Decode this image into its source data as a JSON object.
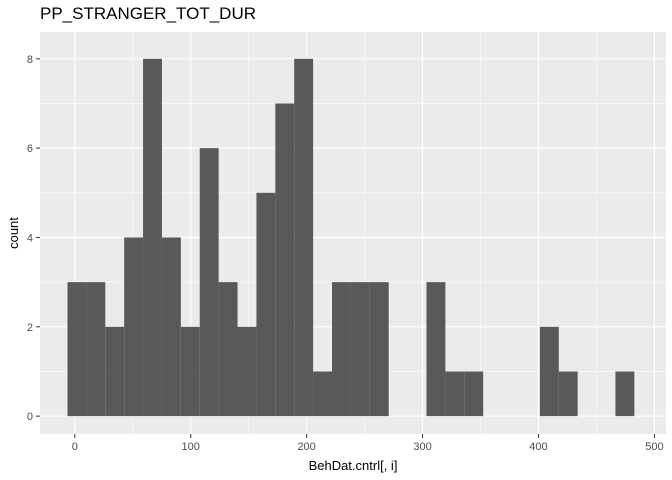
{
  "chart_data": {
    "type": "bar",
    "title": "PP_STRANGER_TOT_DUR",
    "xlabel": "BehDat.cntrl[, i]",
    "ylabel": "count",
    "xlim": [
      -30,
      510
    ],
    "ylim": [
      -0.4,
      8.6
    ],
    "grid": true,
    "bin_width": 16.3,
    "bins": [
      {
        "x": -6.3,
        "count": 3
      },
      {
        "x": 10.0,
        "count": 3
      },
      {
        "x": 26.3,
        "count": 2
      },
      {
        "x": 42.6,
        "count": 4
      },
      {
        "x": 58.9,
        "count": 8
      },
      {
        "x": 75.2,
        "count": 4
      },
      {
        "x": 91.5,
        "count": 2
      },
      {
        "x": 107.8,
        "count": 6
      },
      {
        "x": 124.1,
        "count": 3
      },
      {
        "x": 140.4,
        "count": 2
      },
      {
        "x": 156.7,
        "count": 5
      },
      {
        "x": 173.0,
        "count": 7
      },
      {
        "x": 189.3,
        "count": 8
      },
      {
        "x": 205.6,
        "count": 1
      },
      {
        "x": 221.9,
        "count": 3
      },
      {
        "x": 238.2,
        "count": 3
      },
      {
        "x": 254.5,
        "count": 3
      },
      {
        "x": 270.8,
        "count": 0
      },
      {
        "x": 287.1,
        "count": 0
      },
      {
        "x": 303.4,
        "count": 3
      },
      {
        "x": 319.7,
        "count": 1
      },
      {
        "x": 336.0,
        "count": 1
      },
      {
        "x": 352.3,
        "count": 0
      },
      {
        "x": 368.6,
        "count": 0
      },
      {
        "x": 384.9,
        "count": 0
      },
      {
        "x": 401.2,
        "count": 2
      },
      {
        "x": 417.5,
        "count": 1
      },
      {
        "x": 433.8,
        "count": 0
      },
      {
        "x": 450.1,
        "count": 0
      },
      {
        "x": 466.4,
        "count": 1
      }
    ],
    "x_ticks": [
      0,
      100,
      200,
      300,
      400,
      500
    ],
    "x_tick_labels": [
      "0",
      "100",
      "200",
      "300",
      "400",
      "500"
    ],
    "y_ticks": [
      0,
      2,
      4,
      6,
      8
    ],
    "y_tick_labels": [
      "0",
      "2",
      "4",
      "6",
      "8"
    ],
    "colors": {
      "panel": "#ebebeb",
      "grid_major": "#ffffff",
      "bar": "#595959",
      "tick_text": "#4d4d4d"
    }
  }
}
